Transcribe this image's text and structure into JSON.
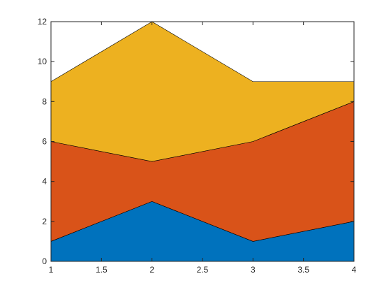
{
  "chart_data": {
    "type": "area",
    "stacked": true,
    "x": [
      1,
      2,
      3,
      4
    ],
    "series": [
      {
        "values": [
          1,
          3,
          1,
          2
        ],
        "color": "#0072BD"
      },
      {
        "values": [
          5,
          2,
          5,
          6
        ],
        "color": "#D95319"
      },
      {
        "values": [
          3,
          7,
          3,
          1
        ],
        "color": "#EDB120"
      }
    ],
    "xlim": [
      1,
      4
    ],
    "ylim": [
      0,
      12
    ],
    "xticks": [
      1,
      1.5,
      2,
      2.5,
      3,
      3.5,
      4
    ],
    "xtick_labels": [
      "1",
      "1.5",
      "2",
      "2.5",
      "3",
      "3.5",
      "4"
    ],
    "yticks": [
      0,
      2,
      4,
      6,
      8,
      10,
      12
    ],
    "ytick_labels": [
      "0",
      "2",
      "4",
      "6",
      "8",
      "10",
      "12"
    ],
    "grid": false,
    "legend": "none",
    "title": "",
    "xlabel": "",
    "ylabel": ""
  }
}
